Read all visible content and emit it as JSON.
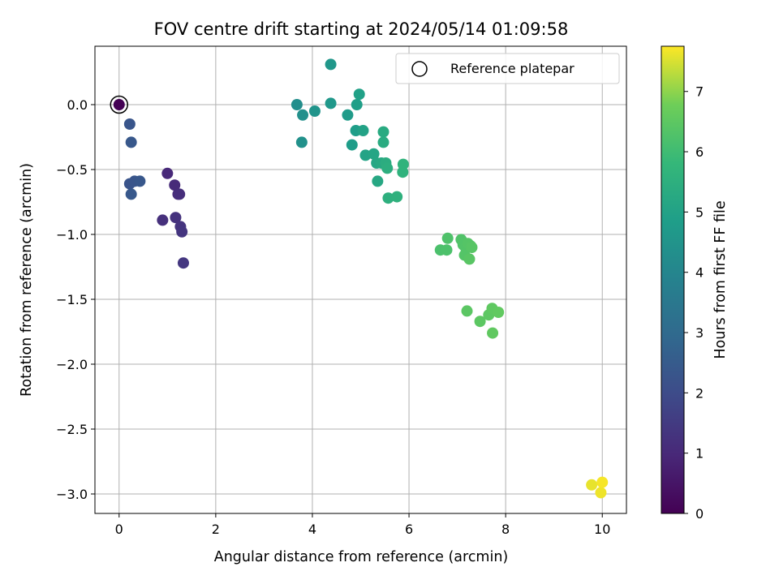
{
  "chart_data": {
    "type": "scatter",
    "title": "FOV centre drift starting at 2024/05/14 01:09:58",
    "xlabel": "Angular distance from reference (arcmin)",
    "ylabel": "Rotation from reference (arcmin)",
    "xlim": [
      -0.5,
      10.5
    ],
    "ylim": [
      -3.15,
      0.45
    ],
    "xticks": [
      0,
      2,
      4,
      6,
      8,
      10
    ],
    "xtick_labels": [
      "0",
      "2",
      "4",
      "6",
      "8",
      "10"
    ],
    "yticks": [
      0.0,
      -0.5,
      -1.0,
      -1.5,
      -2.0,
      -2.5,
      -3.0
    ],
    "ytick_labels": [
      "0.0",
      "−0.5",
      "−1.0",
      "−1.5",
      "−2.0",
      "−2.5",
      "−3.0"
    ],
    "grid": true,
    "legend_position": "top-right",
    "colorbar": {
      "label": "Hours from first FF file",
      "range": [
        0,
        7.75
      ],
      "ticks": [
        0,
        1,
        2,
        3,
        4,
        5,
        6,
        7
      ],
      "tick_labels": [
        "0",
        "1",
        "2",
        "3",
        "4",
        "5",
        "6",
        "7"
      ],
      "colormap": "viridis"
    },
    "reference": {
      "label": "Reference platepar",
      "x": 0.0,
      "y": 0.0,
      "hours": 0.0
    },
    "points": [
      {
        "x": 0.0,
        "y": 0.0,
        "hours": 0.0
      },
      {
        "x": 1.0,
        "y": -0.53,
        "hours": 1.0
      },
      {
        "x": 1.15,
        "y": -0.62,
        "hours": 1.05
      },
      {
        "x": 1.22,
        "y": -0.69,
        "hours": 1.1
      },
      {
        "x": 1.25,
        "y": -0.69,
        "hours": 1.15
      },
      {
        "x": 0.9,
        "y": -0.89,
        "hours": 1.2
      },
      {
        "x": 1.17,
        "y": -0.87,
        "hours": 1.25
      },
      {
        "x": 1.27,
        "y": -0.94,
        "hours": 1.3
      },
      {
        "x": 1.3,
        "y": -0.98,
        "hours": 1.35
      },
      {
        "x": 1.33,
        "y": -1.22,
        "hours": 1.4
      },
      {
        "x": 0.22,
        "y": -0.15,
        "hours": 2.3
      },
      {
        "x": 0.25,
        "y": -0.29,
        "hours": 2.4
      },
      {
        "x": 0.22,
        "y": -0.61,
        "hours": 2.25
      },
      {
        "x": 0.32,
        "y": -0.59,
        "hours": 2.3
      },
      {
        "x": 0.43,
        "y": -0.59,
        "hours": 2.35
      },
      {
        "x": 0.25,
        "y": -0.69,
        "hours": 2.4
      },
      {
        "x": 3.68,
        "y": 0.0,
        "hours": 4.3
      },
      {
        "x": 3.8,
        "y": -0.08,
        "hours": 4.35
      },
      {
        "x": 3.78,
        "y": -0.29,
        "hours": 4.4
      },
      {
        "x": 4.05,
        "y": -0.05,
        "hours": 4.5
      },
      {
        "x": 4.38,
        "y": 0.31,
        "hours": 4.6
      },
      {
        "x": 4.38,
        "y": 0.01,
        "hours": 4.65
      },
      {
        "x": 4.73,
        "y": -0.08,
        "hours": 4.75
      },
      {
        "x": 4.82,
        "y": -0.31,
        "hours": 4.8
      },
      {
        "x": 4.9,
        "y": -0.2,
        "hours": 4.85
      },
      {
        "x": 4.92,
        "y": 0.0,
        "hours": 4.9
      },
      {
        "x": 4.97,
        "y": 0.08,
        "hours": 4.95
      },
      {
        "x": 5.05,
        "y": -0.2,
        "hours": 5.0
      },
      {
        "x": 5.1,
        "y": -0.39,
        "hours": 5.05
      },
      {
        "x": 5.27,
        "y": -0.38,
        "hours": 5.1
      },
      {
        "x": 5.33,
        "y": -0.45,
        "hours": 5.15
      },
      {
        "x": 5.35,
        "y": -0.59,
        "hours": 5.2
      },
      {
        "x": 5.43,
        "y": -0.45,
        "hours": 5.25
      },
      {
        "x": 5.47,
        "y": -0.21,
        "hours": 5.3
      },
      {
        "x": 5.47,
        "y": -0.29,
        "hours": 5.35
      },
      {
        "x": 5.52,
        "y": -0.45,
        "hours": 5.4
      },
      {
        "x": 5.55,
        "y": -0.49,
        "hours": 5.45
      },
      {
        "x": 5.57,
        "y": -0.72,
        "hours": 5.5
      },
      {
        "x": 5.75,
        "y": -0.71,
        "hours": 5.55
      },
      {
        "x": 5.87,
        "y": -0.52,
        "hours": 5.6
      },
      {
        "x": 5.88,
        "y": -0.46,
        "hours": 5.65
      },
      {
        "x": 6.65,
        "y": -1.12,
        "hours": 6.2
      },
      {
        "x": 6.78,
        "y": -1.12,
        "hours": 6.22
      },
      {
        "x": 6.8,
        "y": -1.03,
        "hours": 6.25
      },
      {
        "x": 7.08,
        "y": -1.04,
        "hours": 6.28
      },
      {
        "x": 7.12,
        "y": -1.08,
        "hours": 6.3
      },
      {
        "x": 7.17,
        "y": -1.1,
        "hours": 6.32
      },
      {
        "x": 7.15,
        "y": -1.16,
        "hours": 6.34
      },
      {
        "x": 7.22,
        "y": -1.07,
        "hours": 6.36
      },
      {
        "x": 7.28,
        "y": -1.09,
        "hours": 6.38
      },
      {
        "x": 7.3,
        "y": -1.1,
        "hours": 6.4
      },
      {
        "x": 7.25,
        "y": -1.19,
        "hours": 6.42
      },
      {
        "x": 7.2,
        "y": -1.59,
        "hours": 6.45
      },
      {
        "x": 7.47,
        "y": -1.67,
        "hours": 6.48
      },
      {
        "x": 7.65,
        "y": -1.62,
        "hours": 6.5
      },
      {
        "x": 7.72,
        "y": -1.57,
        "hours": 6.52
      },
      {
        "x": 7.73,
        "y": -1.76,
        "hours": 6.54
      },
      {
        "x": 7.85,
        "y": -1.6,
        "hours": 6.56
      },
      {
        "x": 9.78,
        "y": -2.93,
        "hours": 7.6
      },
      {
        "x": 9.97,
        "y": -2.99,
        "hours": 7.65
      },
      {
        "x": 10.0,
        "y": -2.91,
        "hours": 7.7
      }
    ]
  }
}
